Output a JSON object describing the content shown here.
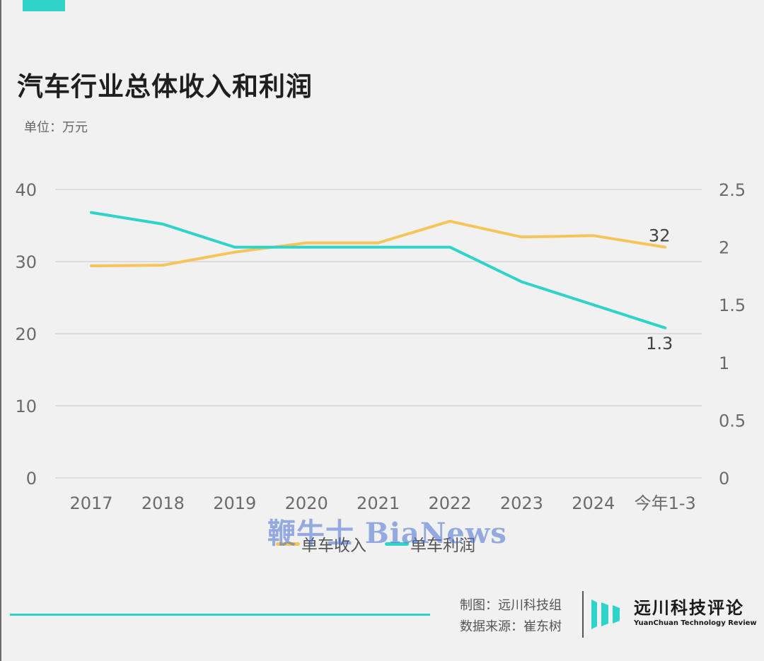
{
  "title": "汽车行业总体收入和利润",
  "unit": "单位：万元",
  "chart_data": {
    "type": "line",
    "categories": [
      "2017",
      "2018",
      "2019",
      "2020",
      "2021",
      "2022",
      "2023",
      "2024",
      "今年1-3"
    ],
    "series": [
      {
        "name": "单车收入",
        "axis": "left",
        "color": "#f5c55a",
        "values": [
          29.4,
          29.5,
          31.3,
          32.6,
          32.6,
          35.6,
          33.4,
          33.6,
          32
        ]
      },
      {
        "name": "单车利润",
        "axis": "right",
        "color": "#2fd3c9",
        "values": [
          2.3,
          2.2,
          2.0,
          2.0,
          2.0,
          2.0,
          1.7,
          1.5,
          1.3
        ]
      }
    ],
    "y_left": {
      "range": [
        0,
        40
      ],
      "ticks": [
        "0",
        "10",
        "20",
        "30",
        "40"
      ]
    },
    "y_right": {
      "range": [
        0,
        2.5
      ],
      "ticks": [
        "0",
        "0.5",
        "1",
        "1.5",
        "2",
        "2.5"
      ]
    },
    "data_labels": {
      "income_last": "32",
      "profit_last": "1.3"
    },
    "grid": true,
    "legend_position": "bottom-center"
  },
  "watermark": "鞭牛士 BiaNews",
  "credits": {
    "made_by": "制图：远川科技组",
    "source": "数据来源：崔东树"
  },
  "brand": {
    "name_cn": "远川科技评论",
    "name_en": "YuanChuan Technology Review"
  },
  "colors": {
    "accent": "#2fd3c9",
    "income": "#f5c55a"
  }
}
